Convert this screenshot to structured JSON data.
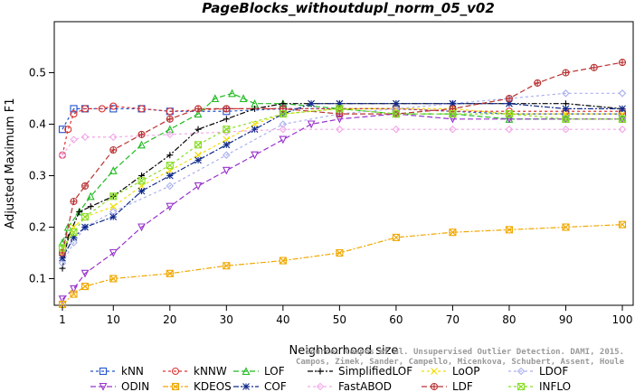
{
  "chart_data": {
    "type": "line",
    "title": "PageBlocks_withoutdupl_norm_05_v02",
    "xlabel": "Neighborhood size",
    "ylabel": "Adjusted Maximum F1",
    "xlim": [
      1,
      100
    ],
    "ylim": [
      0.05,
      0.55
    ],
    "xticks": [
      1,
      10,
      20,
      30,
      40,
      50,
      60,
      70,
      80,
      90,
      100
    ],
    "yticks": [
      0.1,
      0.2,
      0.3,
      0.4,
      0.5
    ],
    "grid": false,
    "legend_position": "bottom",
    "watermark": [
      "Source: Campos et al. Unsupervised Outlier Detection. DAMI, 2015.",
      "Campos, Zimek, Sander, Campello, Micenkova, Schubert, Assent, Houle"
    ],
    "series": [
      {
        "name": "kNN",
        "color": "#2255cc",
        "marker": "square",
        "dash": "3,3",
        "points": [
          [
            1,
            0.39
          ],
          [
            3,
            0.43
          ],
          [
            5,
            0.43
          ],
          [
            10,
            0.43
          ],
          [
            15,
            0.43
          ],
          [
            20,
            0.425
          ],
          [
            30,
            0.425
          ],
          [
            40,
            0.43
          ],
          [
            50,
            0.43
          ],
          [
            60,
            0.43
          ],
          [
            70,
            0.425
          ],
          [
            80,
            0.42
          ],
          [
            90,
            0.42
          ],
          [
            100,
            0.42
          ]
        ]
      },
      {
        "name": "kNNW",
        "color": "#dd3333",
        "marker": "circle",
        "dash": "3,3",
        "points": [
          [
            1,
            0.34
          ],
          [
            2,
            0.39
          ],
          [
            3,
            0.42
          ],
          [
            5,
            0.43
          ],
          [
            8,
            0.43
          ],
          [
            10,
            0.435
          ],
          [
            15,
            0.43
          ],
          [
            20,
            0.425
          ],
          [
            30,
            0.43
          ],
          [
            40,
            0.43
          ],
          [
            50,
            0.43
          ],
          [
            60,
            0.43
          ],
          [
            70,
            0.425
          ],
          [
            80,
            0.425
          ],
          [
            90,
            0.425
          ],
          [
            100,
            0.425
          ]
        ]
      },
      {
        "name": "LOF",
        "color": "#22bb22",
        "marker": "triangle",
        "dash": "6,3",
        "points": [
          [
            1,
            0.17
          ],
          [
            2,
            0.2
          ],
          [
            4,
            0.23
          ],
          [
            6,
            0.26
          ],
          [
            10,
            0.31
          ],
          [
            15,
            0.36
          ],
          [
            20,
            0.39
          ],
          [
            25,
            0.42
          ],
          [
            28,
            0.45
          ],
          [
            31,
            0.46
          ],
          [
            33,
            0.45
          ],
          [
            35,
            0.44
          ],
          [
            40,
            0.44
          ],
          [
            50,
            0.43
          ],
          [
            60,
            0.42
          ],
          [
            70,
            0.42
          ],
          [
            80,
            0.41
          ],
          [
            90,
            0.41
          ],
          [
            100,
            0.41
          ]
        ]
      },
      {
        "name": "SimplifiedLOF",
        "color": "#000000",
        "marker": "plus",
        "dash": "6,2,2,2",
        "points": [
          [
            1,
            0.12
          ],
          [
            2,
            0.18
          ],
          [
            4,
            0.23
          ],
          [
            6,
            0.24
          ],
          [
            10,
            0.26
          ],
          [
            15,
            0.3
          ],
          [
            20,
            0.34
          ],
          [
            25,
            0.39
          ],
          [
            30,
            0.41
          ],
          [
            35,
            0.43
          ],
          [
            40,
            0.44
          ],
          [
            50,
            0.44
          ],
          [
            60,
            0.44
          ],
          [
            70,
            0.44
          ],
          [
            80,
            0.44
          ],
          [
            90,
            0.44
          ],
          [
            100,
            0.43
          ]
        ]
      },
      {
        "name": "LoOP",
        "color": "#f0dd00",
        "marker": "x",
        "dash": "3,3",
        "points": [
          [
            1,
            0.15
          ],
          [
            3,
            0.2
          ],
          [
            5,
            0.22
          ],
          [
            10,
            0.24
          ],
          [
            15,
            0.28
          ],
          [
            20,
            0.31
          ],
          [
            25,
            0.34
          ],
          [
            30,
            0.37
          ],
          [
            35,
            0.4
          ],
          [
            40,
            0.42
          ],
          [
            50,
            0.43
          ],
          [
            60,
            0.43
          ],
          [
            70,
            0.43
          ],
          [
            80,
            0.42
          ],
          [
            90,
            0.42
          ],
          [
            100,
            0.42
          ]
        ]
      },
      {
        "name": "LDOF",
        "color": "#aab0ee",
        "marker": "diamond",
        "dash": "3,3",
        "points": [
          [
            1,
            0.13
          ],
          [
            3,
            0.17
          ],
          [
            5,
            0.2
          ],
          [
            10,
            0.23
          ],
          [
            20,
            0.28
          ],
          [
            30,
            0.34
          ],
          [
            40,
            0.4
          ],
          [
            50,
            0.42
          ],
          [
            60,
            0.43
          ],
          [
            70,
            0.44
          ],
          [
            80,
            0.45
          ],
          [
            90,
            0.46
          ],
          [
            100,
            0.46
          ]
        ]
      },
      {
        "name": "ODIN",
        "color": "#9933cc",
        "marker": "triangle-down",
        "dash": "6,3",
        "points": [
          [
            1,
            0.06
          ],
          [
            3,
            0.08
          ],
          [
            5,
            0.11
          ],
          [
            10,
            0.15
          ],
          [
            15,
            0.2
          ],
          [
            20,
            0.24
          ],
          [
            25,
            0.28
          ],
          [
            30,
            0.31
          ],
          [
            35,
            0.34
          ],
          [
            40,
            0.37
          ],
          [
            45,
            0.4
          ],
          [
            50,
            0.41
          ],
          [
            60,
            0.42
          ],
          [
            70,
            0.41
          ],
          [
            80,
            0.41
          ],
          [
            90,
            0.41
          ],
          [
            100,
            0.41
          ]
        ]
      },
      {
        "name": "KDEOS",
        "color": "#f0a800",
        "marker": "square-x",
        "dash": "6,2,2,2",
        "points": [
          [
            1,
            0.05
          ],
          [
            3,
            0.07
          ],
          [
            5,
            0.085
          ],
          [
            10,
            0.1
          ],
          [
            20,
            0.11
          ],
          [
            30,
            0.125
          ],
          [
            40,
            0.135
          ],
          [
            50,
            0.15
          ],
          [
            60,
            0.18
          ],
          [
            70,
            0.19
          ],
          [
            80,
            0.195
          ],
          [
            90,
            0.2
          ],
          [
            100,
            0.205
          ]
        ]
      },
      {
        "name": "COF",
        "color": "#102a8a",
        "marker": "star",
        "dash": "6,2,2,2",
        "points": [
          [
            1,
            0.14
          ],
          [
            3,
            0.18
          ],
          [
            5,
            0.2
          ],
          [
            10,
            0.22
          ],
          [
            15,
            0.27
          ],
          [
            20,
            0.3
          ],
          [
            25,
            0.33
          ],
          [
            30,
            0.36
          ],
          [
            35,
            0.39
          ],
          [
            40,
            0.42
          ],
          [
            45,
            0.44
          ],
          [
            50,
            0.44
          ],
          [
            60,
            0.44
          ],
          [
            70,
            0.44
          ],
          [
            80,
            0.44
          ],
          [
            90,
            0.43
          ],
          [
            100,
            0.43
          ]
        ]
      },
      {
        "name": "FastABOD",
        "color": "#f2a8e8",
        "marker": "diamond",
        "dash": "3,3",
        "points": [
          [
            1,
            0.34
          ],
          [
            3,
            0.37
          ],
          [
            5,
            0.375
          ],
          [
            10,
            0.375
          ],
          [
            20,
            0.38
          ],
          [
            30,
            0.385
          ],
          [
            40,
            0.39
          ],
          [
            50,
            0.39
          ],
          [
            60,
            0.39
          ],
          [
            70,
            0.39
          ],
          [
            80,
            0.39
          ],
          [
            90,
            0.39
          ],
          [
            100,
            0.39
          ]
        ]
      },
      {
        "name": "LDF",
        "color": "#bb3333",
        "marker": "circle-plus",
        "dash": "6,3",
        "points": [
          [
            1,
            0.15
          ],
          [
            3,
            0.25
          ],
          [
            5,
            0.28
          ],
          [
            10,
            0.35
          ],
          [
            15,
            0.38
          ],
          [
            20,
            0.41
          ],
          [
            25,
            0.43
          ],
          [
            30,
            0.43
          ],
          [
            40,
            0.43
          ],
          [
            50,
            0.42
          ],
          [
            60,
            0.42
          ],
          [
            70,
            0.43
          ],
          [
            80,
            0.45
          ],
          [
            85,
            0.48
          ],
          [
            90,
            0.5
          ],
          [
            95,
            0.51
          ],
          [
            100,
            0.52
          ]
        ]
      },
      {
        "name": "INFLO",
        "color": "#88dd22",
        "marker": "square-x",
        "dash": "3,3",
        "points": [
          [
            1,
            0.16
          ],
          [
            3,
            0.19
          ],
          [
            5,
            0.22
          ],
          [
            10,
            0.26
          ],
          [
            15,
            0.29
          ],
          [
            20,
            0.32
          ],
          [
            25,
            0.36
          ],
          [
            30,
            0.39
          ],
          [
            40,
            0.42
          ],
          [
            50,
            0.43
          ],
          [
            60,
            0.42
          ],
          [
            70,
            0.42
          ],
          [
            80,
            0.42
          ],
          [
            90,
            0.41
          ],
          [
            100,
            0.41
          ]
        ]
      }
    ]
  }
}
